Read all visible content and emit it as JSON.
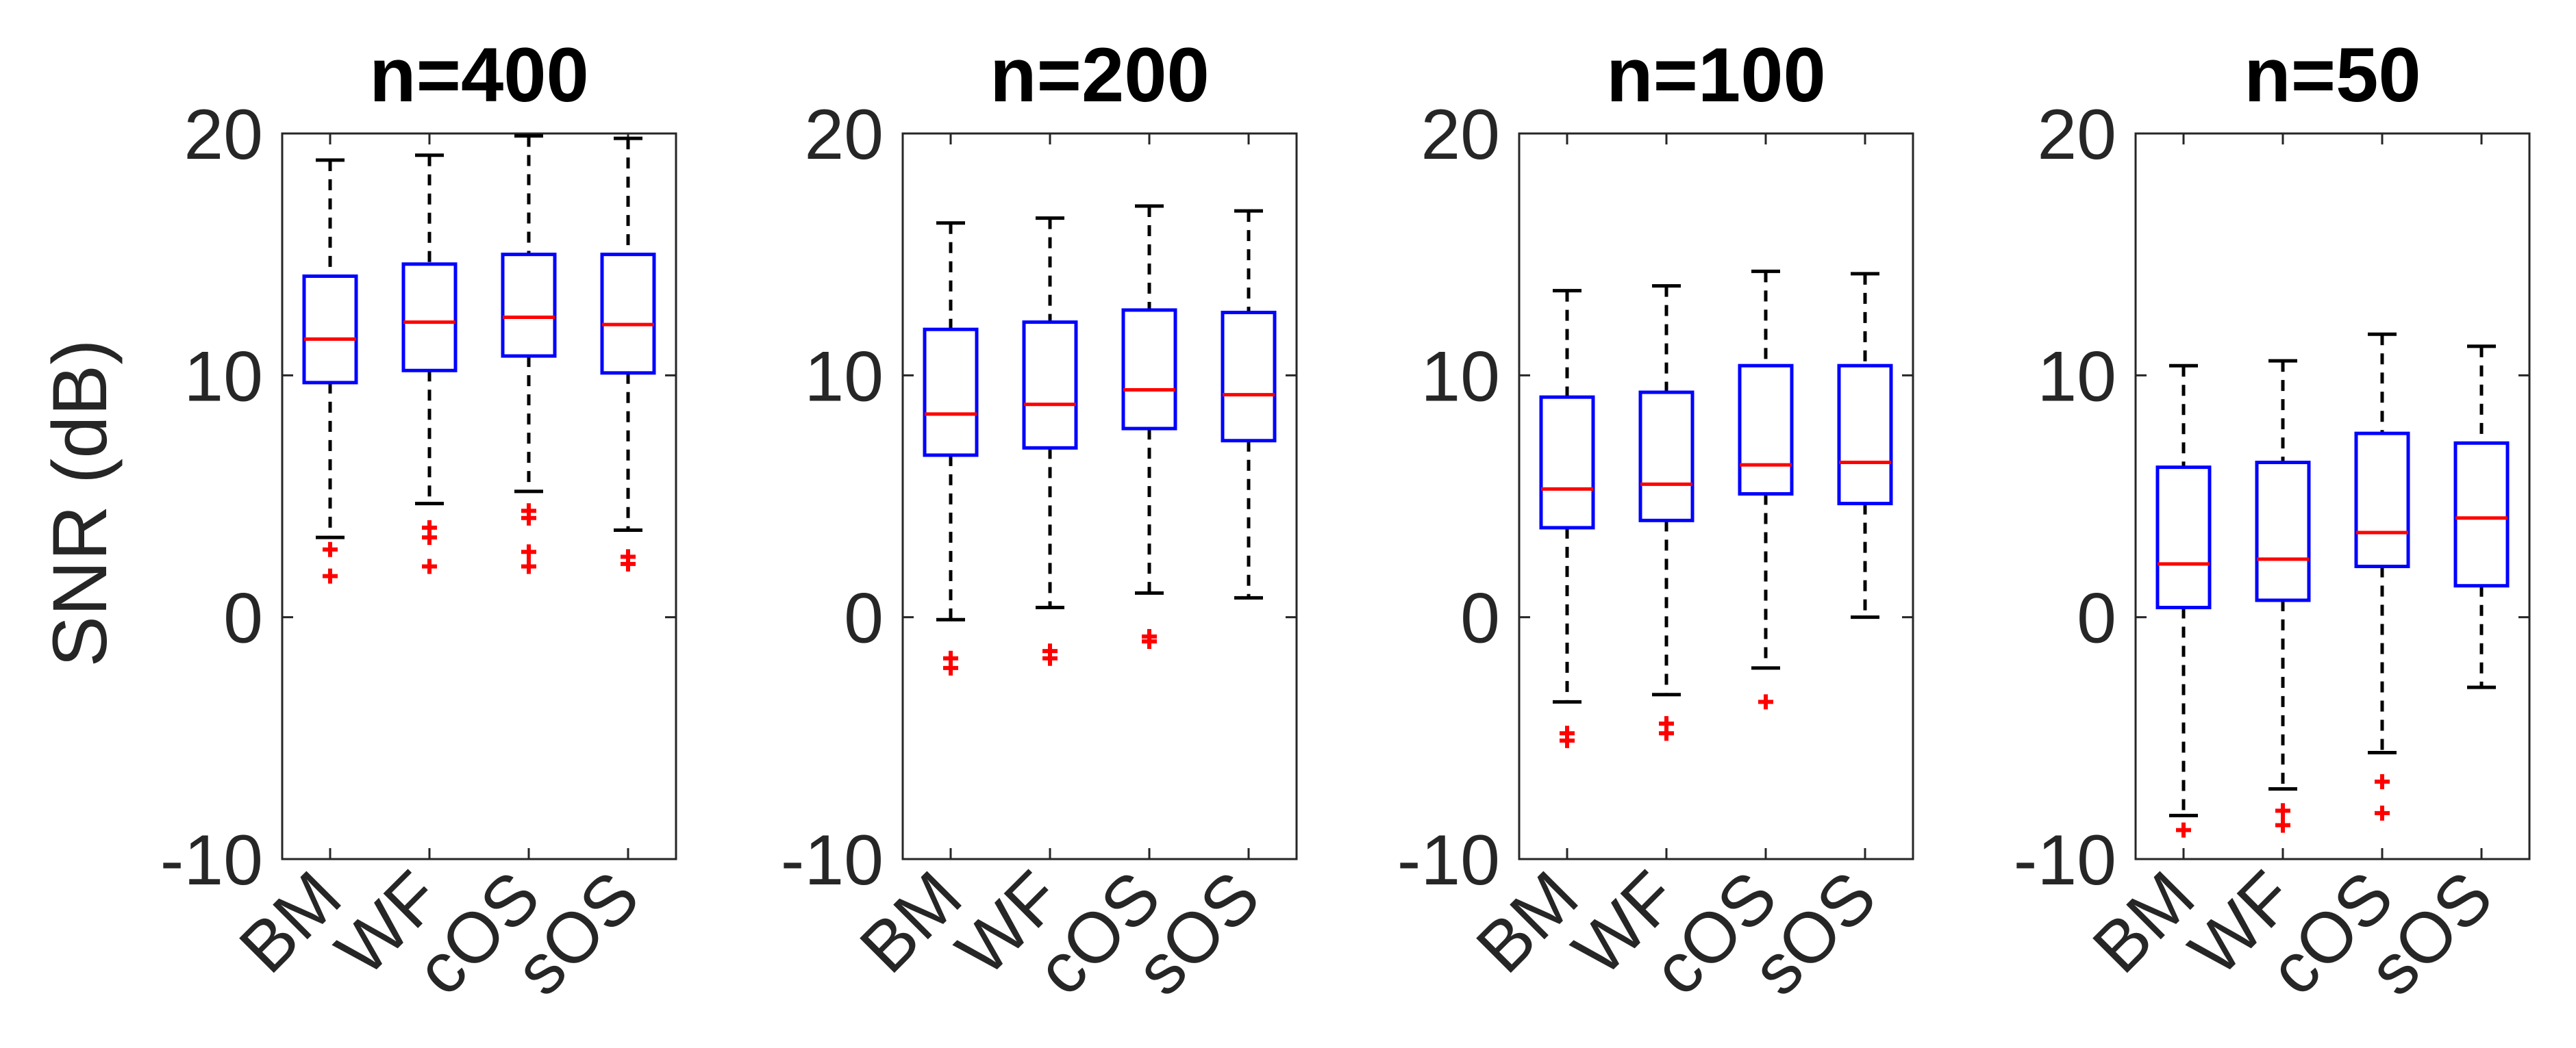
{
  "chart_data": {
    "type": "boxplot",
    "ylabel": "SNR (dB)",
    "ylim": [
      -10,
      20
    ],
    "yticks": [
      -10,
      0,
      10,
      20
    ],
    "categories": [
      "BM",
      "WF",
      "cOS",
      "sOS"
    ],
    "colors": {
      "box": "#0000ff",
      "median": "#ff0000",
      "outlier": "#ff0000",
      "whisker": "#000000"
    },
    "panels": [
      {
        "title": "n=400",
        "boxes": [
          {
            "category": "BM",
            "min": 3.3,
            "q1": 9.7,
            "median": 11.5,
            "q3": 14.1,
            "max": 18.9,
            "outliers": [
              2.8,
              1.7
            ]
          },
          {
            "category": "WF",
            "min": 4.7,
            "q1": 10.2,
            "median": 12.2,
            "q3": 14.6,
            "max": 19.1,
            "outliers": [
              3.7,
              3.3,
              2.1
            ]
          },
          {
            "category": "cOS",
            "min": 5.2,
            "q1": 10.8,
            "median": 12.4,
            "q3": 15.0,
            "max": 19.9,
            "outliers": [
              4.4,
              4.1,
              2.7,
              2.1
            ]
          },
          {
            "category": "sOS",
            "min": 3.6,
            "q1": 10.1,
            "median": 12.1,
            "q3": 15.0,
            "max": 19.8,
            "outliers": [
              2.5,
              2.2
            ]
          }
        ]
      },
      {
        "title": "n=200",
        "boxes": [
          {
            "category": "BM",
            "min": -0.1,
            "q1": 6.7,
            "median": 8.4,
            "q3": 11.9,
            "max": 16.3,
            "outliers": [
              -1.7,
              -2.1
            ]
          },
          {
            "category": "WF",
            "min": 0.4,
            "q1": 7.0,
            "median": 8.8,
            "q3": 12.2,
            "max": 16.5,
            "outliers": [
              -1.4,
              -1.7
            ]
          },
          {
            "category": "cOS",
            "min": 1.0,
            "q1": 7.8,
            "median": 9.4,
            "q3": 12.7,
            "max": 17.0,
            "outliers": [
              -0.8,
              -1.0
            ]
          },
          {
            "category": "sOS",
            "min": 0.8,
            "q1": 7.3,
            "median": 9.2,
            "q3": 12.6,
            "max": 16.8,
            "outliers": []
          }
        ]
      },
      {
        "title": "n=100",
        "boxes": [
          {
            "category": "BM",
            "min": -3.5,
            "q1": 3.7,
            "median": 5.3,
            "q3": 9.1,
            "max": 13.5,
            "outliers": [
              -4.8,
              -5.1
            ]
          },
          {
            "category": "WF",
            "min": -3.2,
            "q1": 4.0,
            "median": 5.5,
            "q3": 9.3,
            "max": 13.7,
            "outliers": [
              -4.4,
              -4.8
            ]
          },
          {
            "category": "cOS",
            "min": -2.1,
            "q1": 5.1,
            "median": 6.3,
            "q3": 10.4,
            "max": 14.3,
            "outliers": [
              -3.5
            ]
          },
          {
            "category": "sOS",
            "min": 0.0,
            "q1": 4.7,
            "median": 6.4,
            "q3": 10.4,
            "max": 14.2,
            "outliers": []
          }
        ]
      },
      {
        "title": "n=50",
        "boxes": [
          {
            "category": "BM",
            "min": -8.2,
            "q1": 0.4,
            "median": 2.2,
            "q3": 6.2,
            "max": 10.4,
            "outliers": [
              -8.8
            ]
          },
          {
            "category": "WF",
            "min": -7.1,
            "q1": 0.7,
            "median": 2.4,
            "q3": 6.4,
            "max": 10.6,
            "outliers": [
              -8.0,
              -8.6
            ]
          },
          {
            "category": "cOS",
            "min": -5.6,
            "q1": 2.1,
            "median": 3.5,
            "q3": 7.6,
            "max": 11.7,
            "outliers": [
              -6.8,
              -8.1
            ]
          },
          {
            "category": "sOS",
            "min": -2.9,
            "q1": 1.3,
            "median": 4.1,
            "q3": 7.2,
            "max": 11.2,
            "outliers": []
          }
        ]
      }
    ]
  }
}
